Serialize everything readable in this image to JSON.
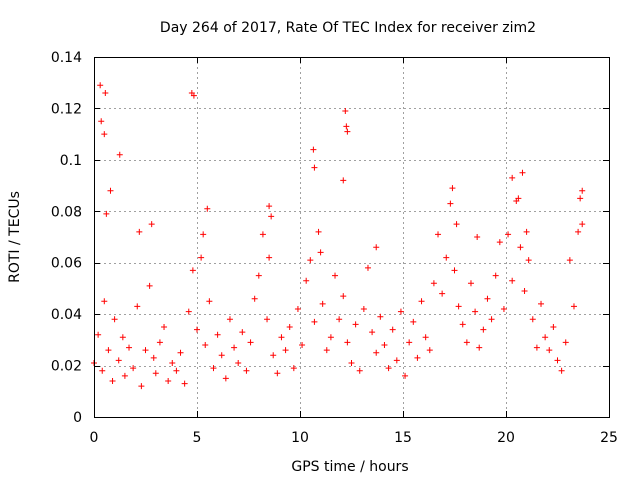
{
  "chart_data": {
    "type": "scatter",
    "title": "Day 264 of 2017, Rate Of TEC Index for receiver zim2",
    "xlabel": "GPS time / hours",
    "ylabel": "ROTI / TECUs",
    "xlim": [
      0,
      25
    ],
    "ylim": [
      0,
      0.14
    ],
    "xticks": [
      0,
      5,
      10,
      15,
      20,
      25
    ],
    "xtick_labels": [
      "0",
      "5",
      "10",
      "15",
      "20",
      "25"
    ],
    "yticks": [
      0,
      0.02,
      0.04,
      0.06,
      0.08,
      0.1,
      0.12,
      0.14
    ],
    "ytick_labels": [
      "0",
      "0.02",
      "0.04",
      "0.06",
      "0.08",
      "0.1",
      "0.12",
      "0.14"
    ],
    "grid": true,
    "marker": "+",
    "marker_color": "#ff0000",
    "series": [
      {
        "name": "ROTI",
        "x": [
          0.0,
          0.2,
          0.4,
          0.5,
          0.7,
          0.9,
          1.0,
          1.2,
          1.4,
          1.5,
          1.7,
          1.9,
          2.1,
          2.3,
          2.5,
          2.7,
          2.9,
          3.0,
          3.2,
          3.4,
          3.6,
          3.8,
          4.0,
          4.2,
          4.4,
          4.6,
          4.8,
          5.0,
          5.2,
          5.4,
          5.6,
          5.8,
          6.0,
          6.2,
          6.4,
          6.6,
          6.8,
          7.0,
          7.2,
          7.4,
          7.6,
          7.8,
          8.0,
          8.2,
          8.4,
          8.5,
          8.7,
          8.9,
          9.1,
          9.3,
          9.5,
          9.7,
          9.9,
          10.1,
          10.3,
          10.5,
          10.7,
          10.9,
          11.1,
          11.3,
          11.5,
          11.7,
          11.9,
          12.1,
          12.3,
          12.5,
          12.7,
          12.9,
          13.1,
          13.3,
          13.5,
          13.7,
          13.9,
          14.1,
          14.3,
          14.5,
          14.7,
          14.9,
          15.1,
          15.3,
          15.5,
          15.7,
          15.9,
          16.1,
          16.3,
          16.5,
          16.7,
          16.9,
          17.1,
          17.3,
          17.5,
          17.7,
          17.9,
          18.1,
          18.3,
          18.5,
          18.7,
          18.9,
          19.1,
          19.3,
          19.5,
          19.7,
          19.9,
          20.1,
          20.3,
          20.5,
          20.7,
          20.9,
          21.1,
          21.3,
          21.5,
          21.7,
          21.9,
          22.1,
          22.3,
          22.5,
          22.7,
          22.9,
          23.1,
          23.3,
          23.5,
          23.7,
          0.3,
          0.35,
          0.5,
          0.55,
          1.25,
          4.75,
          4.85,
          10.65,
          10.7,
          12.2,
          12.25,
          12.3,
          0.6,
          0.8,
          2.2,
          2.8,
          5.3,
          5.5,
          8.5,
          8.6,
          11.0,
          12.1,
          13.7,
          17.4,
          17.6,
          18.6,
          20.3,
          20.6,
          20.8,
          21.0,
          23.6,
          23.7
        ],
        "y": [
          0.021,
          0.032,
          0.018,
          0.045,
          0.026,
          0.014,
          0.038,
          0.022,
          0.031,
          0.016,
          0.027,
          0.019,
          0.043,
          0.012,
          0.026,
          0.051,
          0.023,
          0.017,
          0.029,
          0.035,
          0.014,
          0.021,
          0.018,
          0.025,
          0.013,
          0.041,
          0.057,
          0.034,
          0.062,
          0.028,
          0.045,
          0.019,
          0.032,
          0.024,
          0.015,
          0.038,
          0.027,
          0.021,
          0.033,
          0.018,
          0.029,
          0.046,
          0.055,
          0.071,
          0.038,
          0.062,
          0.024,
          0.017,
          0.031,
          0.026,
          0.035,
          0.019,
          0.042,
          0.028,
          0.053,
          0.061,
          0.037,
          0.072,
          0.044,
          0.026,
          0.031,
          0.055,
          0.038,
          0.047,
          0.029,
          0.021,
          0.036,
          0.018,
          0.042,
          0.058,
          0.033,
          0.025,
          0.039,
          0.028,
          0.019,
          0.034,
          0.022,
          0.041,
          0.016,
          0.029,
          0.037,
          0.023,
          0.045,
          0.031,
          0.026,
          0.052,
          0.071,
          0.048,
          0.062,
          0.083,
          0.057,
          0.043,
          0.036,
          0.029,
          0.052,
          0.041,
          0.027,
          0.034,
          0.046,
          0.038,
          0.055,
          0.068,
          0.042,
          0.071,
          0.053,
          0.084,
          0.066,
          0.049,
          0.061,
          0.038,
          0.027,
          0.044,
          0.031,
          0.026,
          0.035,
          0.022,
          0.018,
          0.029,
          0.061,
          0.043,
          0.072,
          0.088,
          0.129,
          0.115,
          0.11,
          0.126,
          0.102,
          0.126,
          0.125,
          0.104,
          0.097,
          0.119,
          0.113,
          0.111,
          0.079,
          0.088,
          0.072,
          0.075,
          0.071,
          0.081,
          0.082,
          0.078,
          0.064,
          0.092,
          0.066,
          0.089,
          0.075,
          0.07,
          0.093,
          0.085,
          0.095,
          0.072,
          0.085,
          0.075
        ]
      }
    ]
  }
}
